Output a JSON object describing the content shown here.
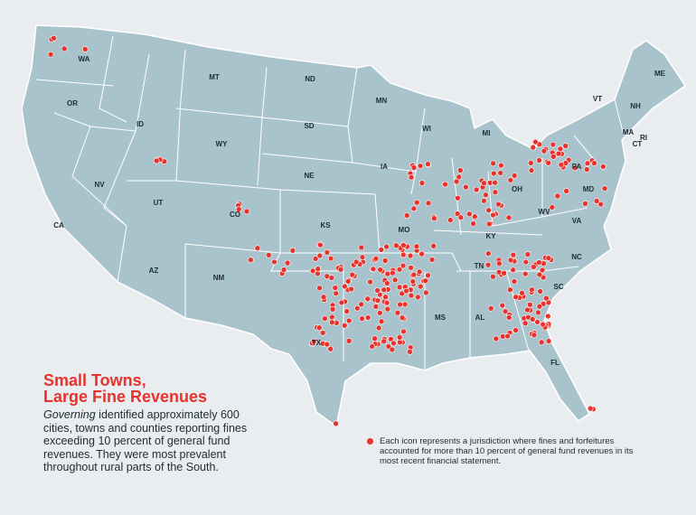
{
  "title": [
    "Small Towns,",
    "Large Fine Revenues"
  ],
  "description": {
    "emphasis": "Governing",
    "text": " identified approximately 600 cities, towns and counties reporting fines exceeding 10 percent of general fund revenues. They were most prevalent throughout rural parts of the South."
  },
  "legend": "Each icon represents a jurisdiction where fines and forfeitures accounted for more than 10 percent of general fund revenues in its most recent financial statement.",
  "states": [
    "WA",
    "OR",
    "CA",
    "NV",
    "ID",
    "MT",
    "WY",
    "UT",
    "AZ",
    "CO",
    "NM",
    "ND",
    "SD",
    "NE",
    "KS",
    "TX",
    "MN",
    "IA",
    "MO",
    "WI",
    "MI",
    "OH",
    "KY",
    "TN",
    "MS",
    "AL",
    "FL",
    "SC",
    "NC",
    "VA",
    "WV",
    "PA",
    "VT",
    "NH",
    "ME",
    "MA",
    "CT",
    "RI",
    "MD"
  ]
}
